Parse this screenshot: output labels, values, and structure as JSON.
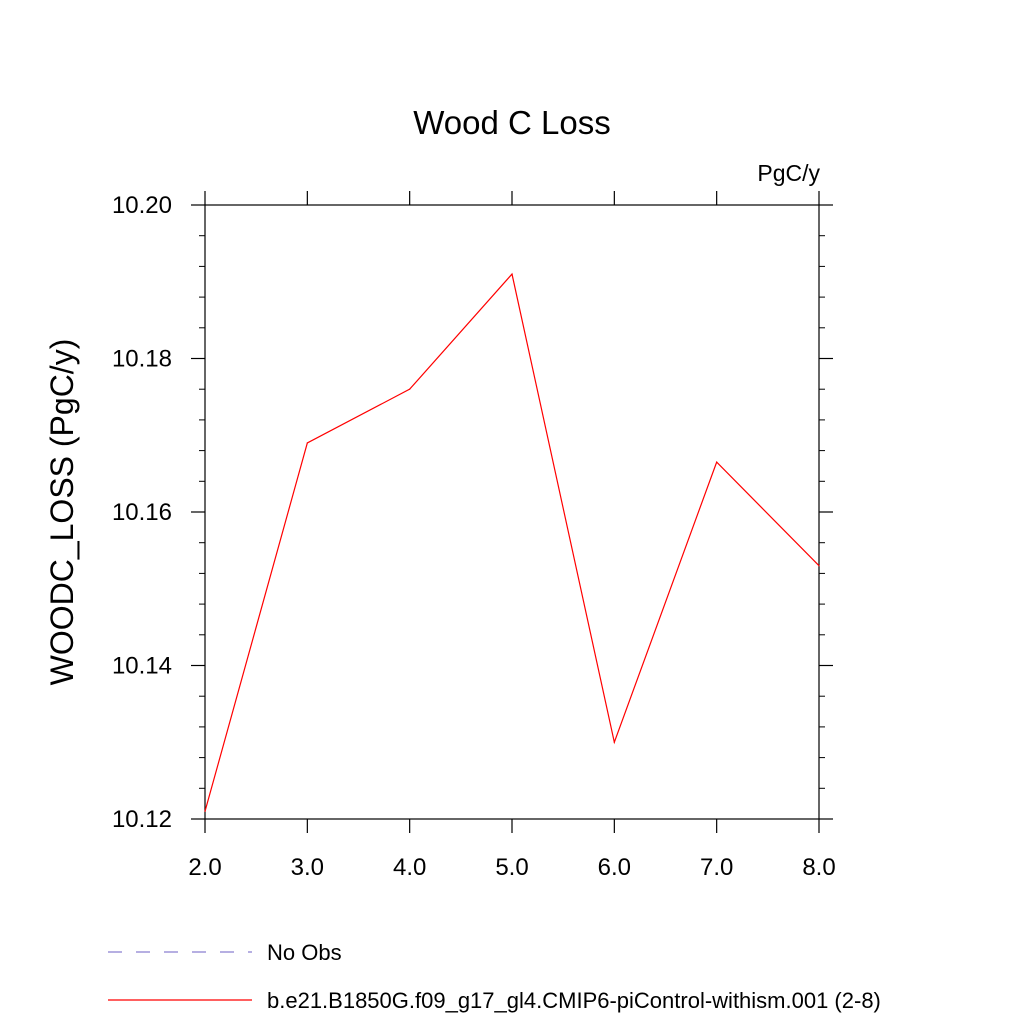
{
  "chart_data": {
    "type": "line",
    "title": "Wood C Loss",
    "units_label": "PgC/y",
    "ylabel": "WOODC_LOSS  (PgC/y)",
    "xlabel": "",
    "xlim": [
      2.0,
      8.0
    ],
    "ylim": [
      10.12,
      10.2
    ],
    "x_ticks": [
      "2.0",
      "3.0",
      "4.0",
      "5.0",
      "6.0",
      "7.0",
      "8.0"
    ],
    "y_ticks": [
      "10.12",
      "10.14",
      "10.16",
      "10.18",
      "10.20"
    ],
    "grid": false,
    "series": [
      {
        "name": "b.e21.B1850G.f09_g17_gl4.CMIP6-piControl-withism.001 (2-8)",
        "color": "#ff0000",
        "x": [
          2.0,
          3.0,
          4.0,
          5.0,
          6.0,
          7.0,
          8.0
        ],
        "values": [
          10.121,
          10.169,
          10.176,
          10.191,
          10.13,
          10.1665,
          10.153
        ]
      }
    ],
    "legend": {
      "placement": "bottom",
      "entries": [
        {
          "label": "No Obs",
          "color": "#8a7fd0",
          "style": "dashed"
        },
        {
          "label": "b.e21.B1850G.f09_g17_gl4.CMIP6-piControl-withism.001 (2-8)",
          "color": "#ff0000",
          "style": "solid"
        }
      ]
    }
  }
}
